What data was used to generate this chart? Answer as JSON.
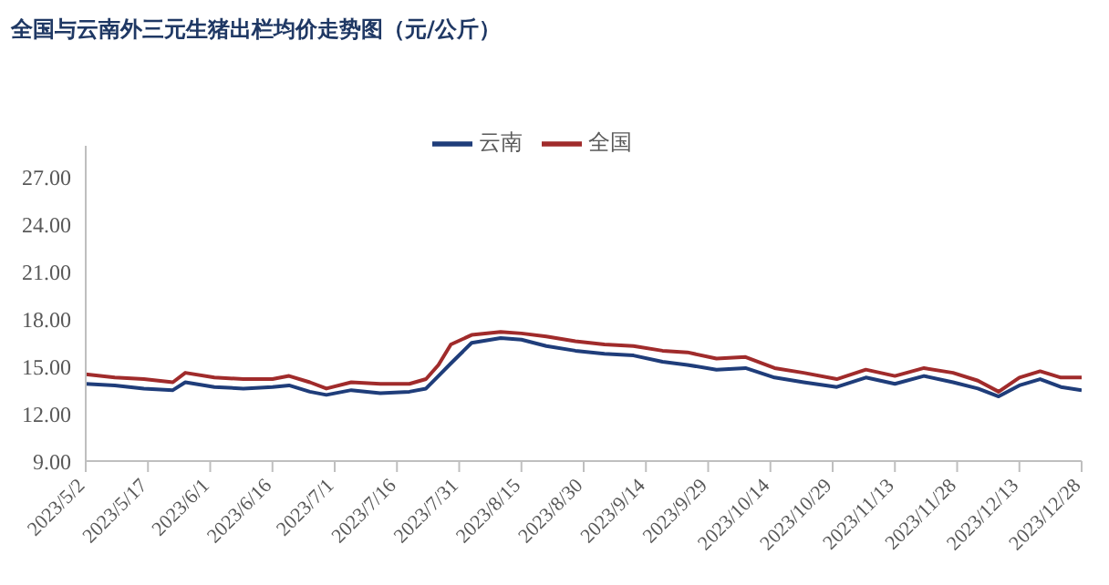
{
  "chart_data": {
    "type": "line",
    "title": "全国与云南外三元生猪出栏均价走势图（元/公斤）",
    "x": [
      "2023-05-02",
      "2023-05-09",
      "2023-05-16",
      "2023-05-23",
      "2023-05-26",
      "2023-06-02",
      "2023-06-09",
      "2023-06-16",
      "2023-06-20",
      "2023-06-25",
      "2023-06-29",
      "2023-07-05",
      "2023-07-12",
      "2023-07-19",
      "2023-07-23",
      "2023-07-26",
      "2023-07-29",
      "2023-08-03",
      "2023-08-10",
      "2023-08-15",
      "2023-08-21",
      "2023-08-28",
      "2023-09-04",
      "2023-09-11",
      "2023-09-18",
      "2023-09-24",
      "2023-10-01",
      "2023-10-08",
      "2023-10-15",
      "2023-10-22",
      "2023-10-30",
      "2023-11-06",
      "2023-11-13",
      "2023-11-20",
      "2023-11-27",
      "2023-12-03",
      "2023-12-08",
      "2023-12-13",
      "2023-12-18",
      "2023-12-23",
      "2023-12-28"
    ],
    "series": [
      {
        "name": "云南",
        "color": "#1f3d7a",
        "values": [
          13.9,
          13.8,
          13.6,
          13.5,
          14.0,
          13.7,
          13.6,
          13.7,
          13.8,
          13.4,
          13.2,
          13.5,
          13.3,
          13.4,
          13.6,
          14.4,
          15.2,
          16.5,
          16.8,
          16.7,
          16.3,
          16.0,
          15.8,
          15.7,
          15.3,
          15.1,
          14.8,
          14.9,
          14.3,
          14.0,
          13.7,
          14.3,
          13.9,
          14.4,
          14.0,
          13.6,
          13.1,
          13.8,
          14.2,
          13.7,
          13.5
        ]
      },
      {
        "name": "全国",
        "color": "#a02b2b",
        "values": [
          14.5,
          14.3,
          14.2,
          14.0,
          14.6,
          14.3,
          14.2,
          14.2,
          14.4,
          14.0,
          13.6,
          14.0,
          13.9,
          13.9,
          14.2,
          15.1,
          16.4,
          17.0,
          17.2,
          17.1,
          16.9,
          16.6,
          16.4,
          16.3,
          16.0,
          15.9,
          15.5,
          15.6,
          14.9,
          14.6,
          14.2,
          14.8,
          14.4,
          14.9,
          14.6,
          14.1,
          13.4,
          14.3,
          14.7,
          14.3,
          14.3
        ]
      }
    ],
    "ylim": [
      9,
      29
    ],
    "yticks": [
      {
        "value": 9,
        "label": "9.00"
      },
      {
        "value": 12,
        "label": "12.00"
      },
      {
        "value": 15,
        "label": "15.00"
      },
      {
        "value": 18,
        "label": "18.00"
      },
      {
        "value": 21,
        "label": "21.00"
      },
      {
        "value": 24,
        "label": "24.00"
      },
      {
        "value": 27,
        "label": "27.00"
      }
    ],
    "xlim": [
      "2023-05-02",
      "2023-12-28"
    ],
    "xticks": [
      {
        "value": "2023-05-02",
        "label": "2023/5/2"
      },
      {
        "value": "2023-05-17",
        "label": "2023/5/17"
      },
      {
        "value": "2023-06-01",
        "label": "2023/6/1"
      },
      {
        "value": "2023-06-16",
        "label": "2023/6/16"
      },
      {
        "value": "2023-07-01",
        "label": "2023/7/1"
      },
      {
        "value": "2023-07-16",
        "label": "2023/7/16"
      },
      {
        "value": "2023-07-31",
        "label": "2023/7/31"
      },
      {
        "value": "2023-08-15",
        "label": "2023/8/15"
      },
      {
        "value": "2023-08-30",
        "label": "2023/8/30"
      },
      {
        "value": "2023-09-14",
        "label": "2023/9/14"
      },
      {
        "value": "2023-09-29",
        "label": "2023/9/29"
      },
      {
        "value": "2023-10-14",
        "label": "2023/10/14"
      },
      {
        "value": "2023-10-29",
        "label": "2023/10/29"
      },
      {
        "value": "2023-11-13",
        "label": "2023/11/13"
      },
      {
        "value": "2023-11-28",
        "label": "2023/11/28"
      },
      {
        "value": "2023-12-13",
        "label": "2023/12/13"
      },
      {
        "value": "2023-12-28",
        "label": "2023/12/28"
      }
    ],
    "grid": false,
    "legend": "top",
    "marker": "none",
    "line_style": "solid"
  }
}
